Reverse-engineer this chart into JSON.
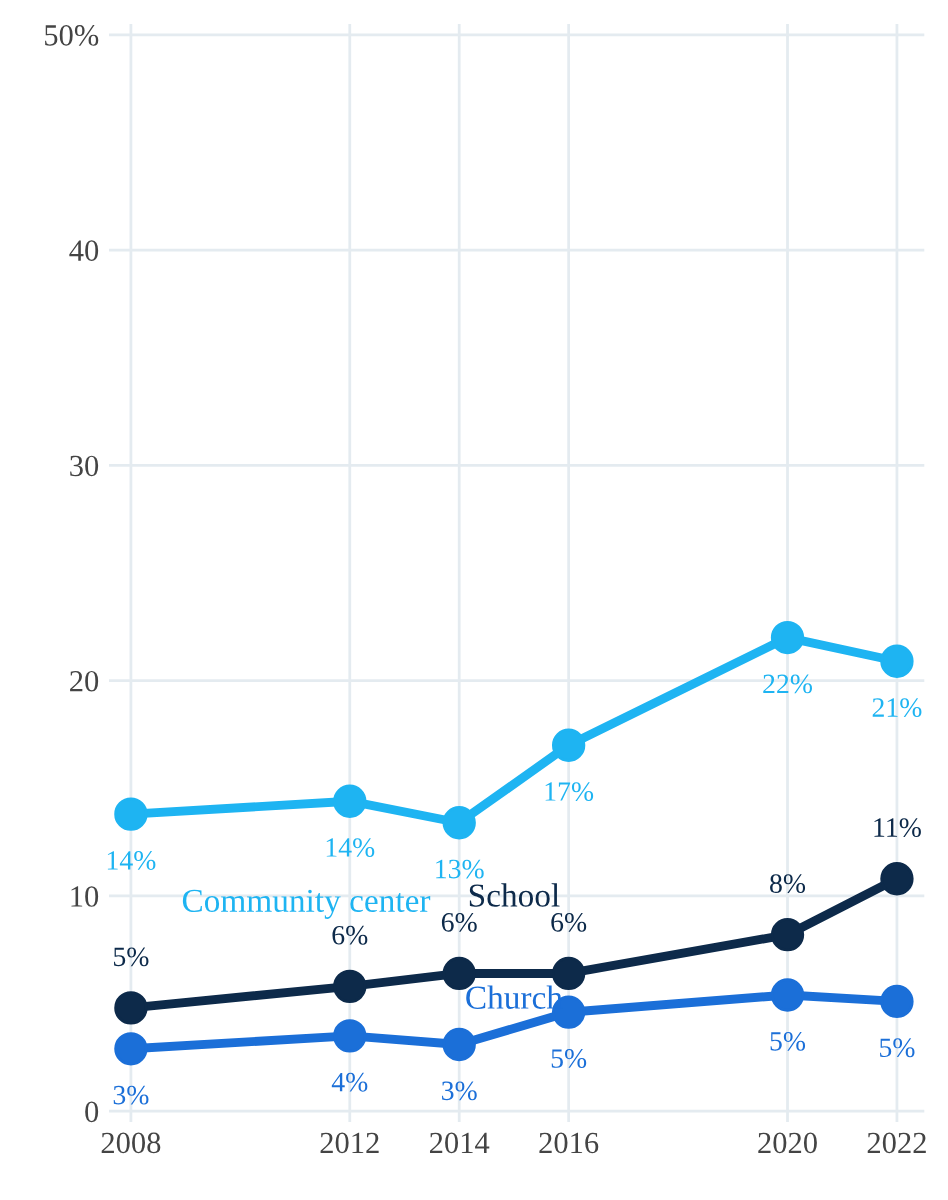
{
  "chart_data": {
    "type": "line",
    "x": [
      2008,
      2012,
      2014,
      2016,
      2020,
      2022
    ],
    "series": [
      {
        "name": "Community center",
        "color": "#1eb4f2",
        "values": [
          13.8,
          14.4,
          13.4,
          17.0,
          22.0,
          20.9
        ],
        "value_labels": [
          "14%",
          "14%",
          "13%",
          "17%",
          "22%",
          "21%"
        ]
      },
      {
        "name": "School",
        "color": "#0d2a4a",
        "values": [
          4.8,
          5.8,
          6.4,
          6.4,
          8.2,
          10.8
        ],
        "value_labels": [
          "5%",
          "6%",
          "6%",
          "6%",
          "8%",
          "11%"
        ]
      },
      {
        "name": "Church",
        "color": "#1b6fd8",
        "values": [
          2.9,
          3.5,
          3.1,
          4.6,
          5.4,
          5.1
        ],
        "value_labels": [
          "3%",
          "4%",
          "3%",
          "5%",
          "5%",
          "5%"
        ]
      }
    ],
    "xlim": [
      2007.6,
      2022.5
    ],
    "xticks": [
      2008,
      2012,
      2014,
      2016,
      2020,
      2022
    ],
    "ylim": [
      -0.5,
      50.5
    ],
    "yticks": [
      0,
      10,
      20,
      30,
      40,
      {
        "value": 50,
        "label": "50%"
      }
    ],
    "grid": true,
    "marker": "circle",
    "line_style": "solid",
    "legend": false
  }
}
